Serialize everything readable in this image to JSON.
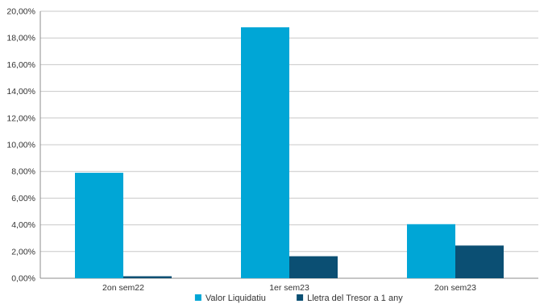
{
  "chart_data": {
    "type": "bar",
    "title": "",
    "xlabel": "",
    "ylabel": "",
    "categories": [
      "2on sem22",
      "1er sem23",
      "2on sem23"
    ],
    "series": [
      {
        "name": "Valor Liquidatiu",
        "values": [
          7.9,
          18.8,
          4.05
        ],
        "color": "#00A6D6"
      },
      {
        "name": "Lletra del Tresor a 1 any",
        "values": [
          0.15,
          1.65,
          2.45
        ],
        "color": "#0B4F73"
      }
    ],
    "ylim": [
      0,
      20
    ],
    "y_ticks": [
      "0,00%",
      "2,00%",
      "4,00%",
      "6,00%",
      "8,00%",
      "10,00%",
      "12,00%",
      "14,00%",
      "16,00%",
      "18,00%",
      "20,00%"
    ],
    "grid": true,
    "legend_position": "bottom"
  }
}
